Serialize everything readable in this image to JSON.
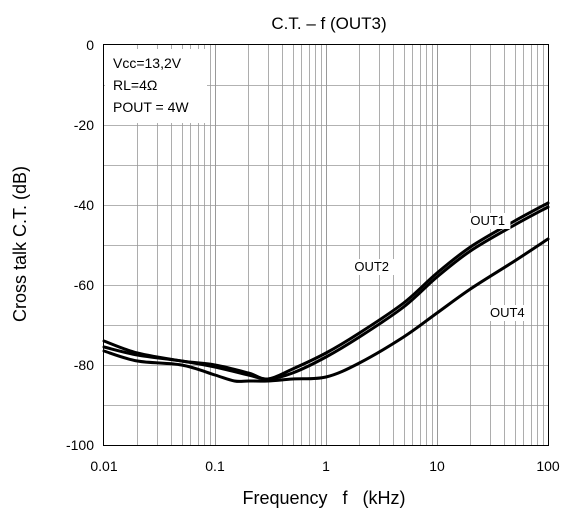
{
  "chart_data": {
    "type": "line",
    "title": "C.T. – f (OUT3)",
    "xlabel": "Frequency   f   (kHz)",
    "ylabel": "Cross talk   C.T.   (dB)",
    "x_scale": "log",
    "xlim": [
      0.01,
      100
    ],
    "ylim": [
      -100,
      0
    ],
    "x_ticks": [
      0.01,
      0.1,
      1,
      10,
      100
    ],
    "x_tick_labels": [
      "0.01",
      "0.1",
      "1",
      "10",
      "100"
    ],
    "y_ticks": [
      0,
      -20,
      -40,
      -60,
      -80,
      -100
    ],
    "y_tick_labels": [
      "0",
      "-20",
      "-40",
      "-60",
      "-80",
      "-100"
    ],
    "grid": true,
    "legend": "none",
    "conditions": {
      "vcc": "Vcc=13,2V",
      "rl": "RL=4Ω",
      "pout": "POUT = 4W"
    },
    "series": [
      {
        "name": "OUT1",
        "x": [
          0.01,
          0.02,
          0.05,
          0.1,
          0.2,
          0.3,
          0.5,
          1,
          2,
          5,
          10,
          20,
          50,
          100
        ],
        "y": [
          -74,
          -77,
          -79,
          -80,
          -82,
          -83.5,
          -81,
          -77,
          -72,
          -64.5,
          -57,
          -50.5,
          -44,
          -39.5
        ]
      },
      {
        "name": "OUT2",
        "x": [
          0.01,
          0.02,
          0.05,
          0.1,
          0.2,
          0.3,
          0.5,
          1,
          2,
          5,
          10,
          20,
          50,
          100
        ],
        "y": [
          -75.5,
          -77.5,
          -79,
          -80.5,
          -82.5,
          -83.5,
          -82,
          -78,
          -73,
          -65.5,
          -58,
          -51.5,
          -45,
          -40.5
        ]
      },
      {
        "name": "OUT4",
        "x": [
          0.01,
          0.02,
          0.05,
          0.1,
          0.15,
          0.2,
          0.3,
          0.5,
          1,
          2,
          5,
          10,
          20,
          50,
          100
        ],
        "y": [
          -76.5,
          -79,
          -80,
          -82.5,
          -84,
          -84,
          -84,
          -83.5,
          -83,
          -79.5,
          -73,
          -67,
          -61,
          -54,
          -48.5
        ]
      }
    ],
    "series_labels": [
      {
        "text": "OUT1",
        "x": 20,
        "y": -45
      },
      {
        "text": "OUT2",
        "x": 1.8,
        "y": -56.5
      },
      {
        "text": "OUT4",
        "x": 30,
        "y": -68
      }
    ],
    "colors": {
      "line": "#000000",
      "grid": "#999999",
      "frame": "#000000"
    }
  }
}
